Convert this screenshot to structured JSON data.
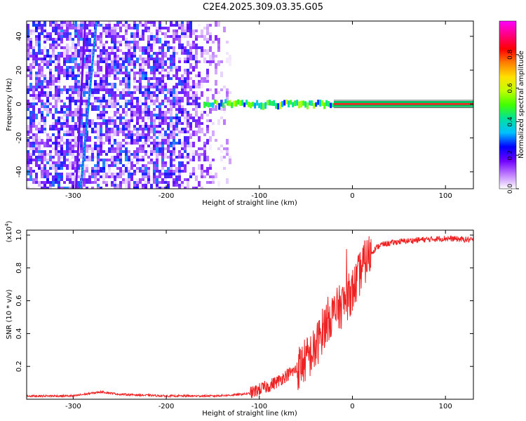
{
  "title": "C2E4.2025.309.03.35.G05",
  "chart_data": [
    {
      "type": "heatmap",
      "xlabel": "Height of straight line (km)",
      "ylabel": "Frequency (Hz)",
      "xlim": [
        -350,
        130
      ],
      "ylim": [
        -50,
        49
      ],
      "xticks": [
        -300,
        -200,
        -100,
        0,
        100
      ],
      "yticks": [
        -40,
        -20,
        0,
        20,
        40
      ],
      "colorbar": {
        "label": "Normalized spectral amplitude",
        "range": [
          0,
          1
        ],
        "ticks": [
          0.0,
          0.2,
          0.4,
          0.6,
          0.8
        ],
        "colors": [
          "#ffffff",
          "#c080ff",
          "#7000ff",
          "#0000ff",
          "#00c0ff",
          "#00e0a0",
          "#40ff00",
          "#c0ff00",
          "#ffe000",
          "#ff8000",
          "#ff0000",
          "#ff0080",
          "#ff00ff"
        ]
      },
      "features": {
        "noise_region_x": [
          -350,
          -130
        ],
        "streak_1": {
          "x": [
            -297,
            -287
          ],
          "y": [
            -50,
            49
          ]
        },
        "streak_2": {
          "x": [
            -292,
            -275
          ],
          "y": [
            -50,
            49
          ]
        },
        "signal_line": {
          "x": [
            -160,
            130
          ],
          "y": 0
        }
      }
    },
    {
      "type": "line",
      "xlabel": "Height of straight line (km)",
      "ylabel": "SNR (10 * v/v)",
      "exponent_label": "(x10",
      "exponent_power": "4",
      "xlim": [
        -350,
        130
      ],
      "ylim": [
        0,
        1.03
      ],
      "xticks": [
        -300,
        -200,
        -100,
        0,
        100
      ],
      "yticks": [
        0.2,
        0.4,
        0.6,
        0.8,
        1.0
      ],
      "color": "#ee2222",
      "series": [
        {
          "x": [
            -350,
            -300,
            -270,
            -250,
            -200,
            -150,
            -130,
            -110,
            -100,
            -90,
            -80,
            -70,
            -60,
            -50,
            -40,
            -35,
            -30,
            -25,
            -20,
            -15,
            -10,
            -5,
            0,
            5,
            10,
            15,
            20,
            25,
            30,
            40,
            50,
            70,
            100,
            130
          ],
          "y": [
            0.02,
            0.02,
            0.045,
            0.03,
            0.02,
            0.02,
            0.025,
            0.035,
            0.06,
            0.08,
            0.11,
            0.15,
            0.18,
            0.24,
            0.3,
            0.38,
            0.45,
            0.5,
            0.52,
            0.55,
            0.58,
            0.62,
            0.66,
            0.72,
            0.8,
            0.85,
            0.89,
            0.92,
            0.94,
            0.95,
            0.96,
            0.97,
            0.98,
            0.97
          ]
        }
      ]
    }
  ]
}
